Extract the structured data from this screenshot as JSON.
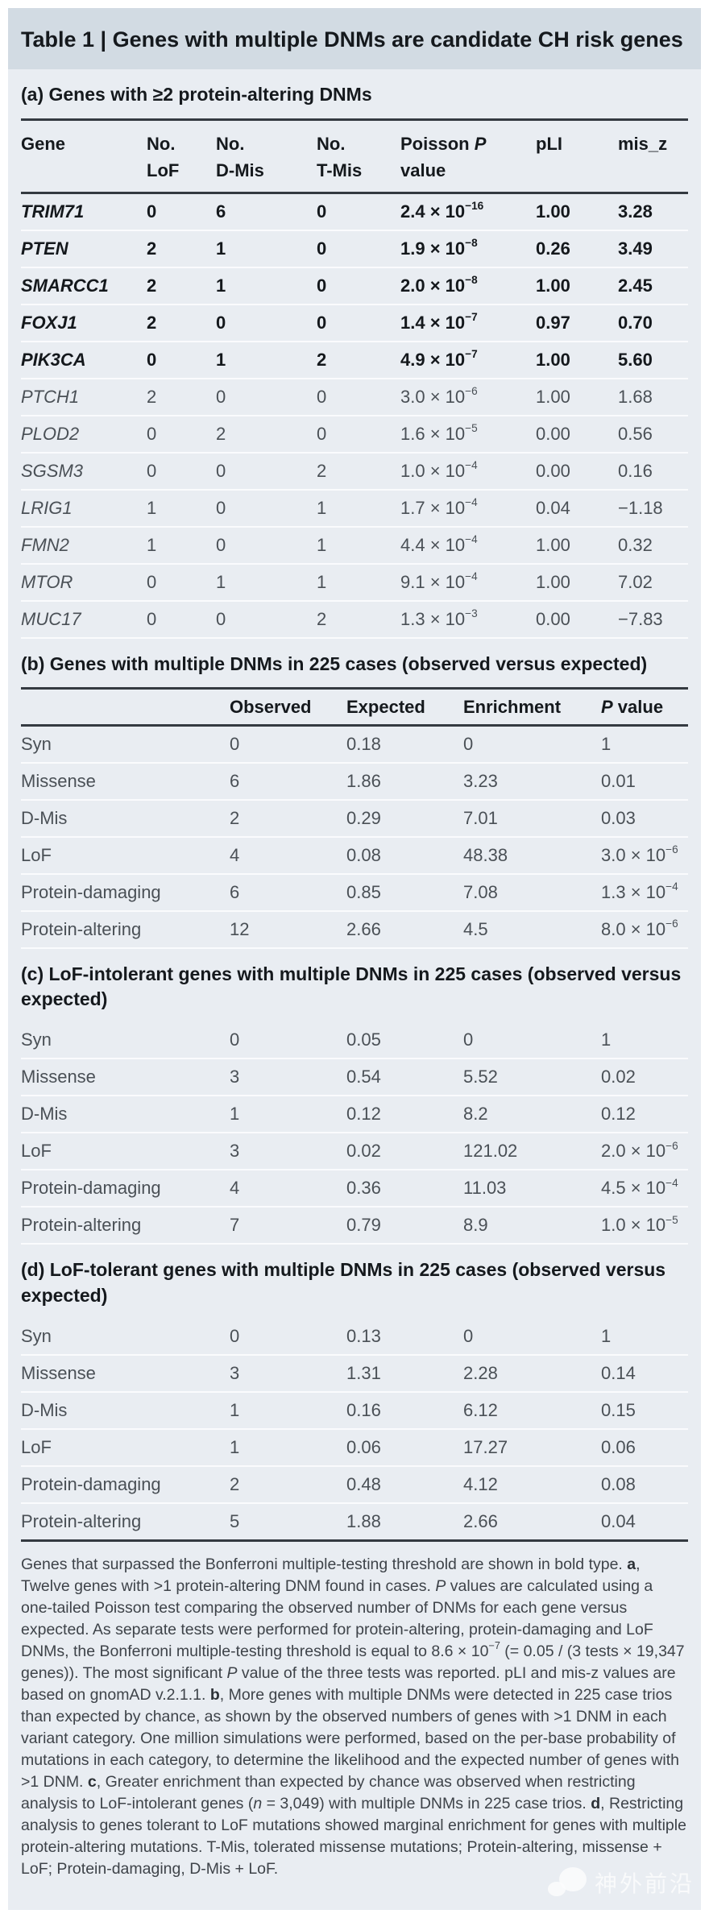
{
  "title": "Table 1 | Genes with multiple DNMs are candidate CH risk genes",
  "colors": {
    "title_band": "#d2dbe3",
    "body_background": "#e9edf2",
    "rule": "#343a41",
    "text_dark": "#14181c",
    "text_regular": "#4a5056"
  },
  "a": {
    "heading": "(a) Genes with ≥2 protein-altering DNMs",
    "columns": {
      "gene": "Gene",
      "no1a": "No.",
      "no1b": "LoF",
      "no2a": "No.",
      "no2b": "D-Mis",
      "no3a": "No.",
      "no3b": "T-Mis",
      "p1a": "Poisson ",
      "p1b": "P",
      "p1c": "value",
      "pli": "pLI",
      "misz": "mis_z"
    },
    "rows": [
      {
        "gene": "TRIM71",
        "lof": "0",
        "dmis": "6",
        "tmis": "0",
        "p": "2.4 × 10",
        "pexp": "−16",
        "pli": "1.00",
        "misz": "3.28"
      },
      {
        "gene": "PTEN",
        "lof": "2",
        "dmis": "1",
        "tmis": "0",
        "p": "1.9 × 10",
        "pexp": "−8",
        "pli": "0.26",
        "misz": "3.49"
      },
      {
        "gene": "SMARCC1",
        "lof": "2",
        "dmis": "1",
        "tmis": "0",
        "p": "2.0 × 10",
        "pexp": "−8",
        "pli": "1.00",
        "misz": "2.45"
      },
      {
        "gene": "FOXJ1",
        "lof": "2",
        "dmis": "0",
        "tmis": "0",
        "p": "1.4 × 10",
        "pexp": "−7",
        "pli": "0.97",
        "misz": "0.70"
      },
      {
        "gene": "PIK3CA",
        "lof": "0",
        "dmis": "1",
        "tmis": "2",
        "p": "4.9 × 10",
        "pexp": "−7",
        "pli": "1.00",
        "misz": "5.60"
      },
      {
        "gene": "PTCH1",
        "lof": "2",
        "dmis": "0",
        "tmis": "0",
        "p": "3.0 × 10",
        "pexp": "−6",
        "pli": "1.00",
        "misz": "1.68"
      },
      {
        "gene": "PLOD2",
        "lof": "0",
        "dmis": "2",
        "tmis": "0",
        "p": "1.6 × 10",
        "pexp": "−5",
        "pli": "0.00",
        "misz": "0.56"
      },
      {
        "gene": "SGSM3",
        "lof": "0",
        "dmis": "0",
        "tmis": "2",
        "p": "1.0 × 10",
        "pexp": "−4",
        "pli": "0.00",
        "misz": "0.16"
      },
      {
        "gene": "LRIG1",
        "lof": "1",
        "dmis": "0",
        "tmis": "1",
        "p": "1.7 × 10",
        "pexp": "−4",
        "pli": "0.04",
        "misz": "−1.18"
      },
      {
        "gene": "FMN2",
        "lof": "1",
        "dmis": "0",
        "tmis": "1",
        "p": "4.4 × 10",
        "pexp": "−4",
        "pli": "1.00",
        "misz": "0.32"
      },
      {
        "gene": "MTOR",
        "lof": "0",
        "dmis": "1",
        "tmis": "1",
        "p": "9.1 × 10",
        "pexp": "−4",
        "pli": "1.00",
        "misz": "7.02"
      },
      {
        "gene": "MUC17",
        "lof": "0",
        "dmis": "0",
        "tmis": "2",
        "p": "1.3 × 10",
        "pexp": "−3",
        "pli": "0.00",
        "misz": "−7.83"
      }
    ]
  },
  "b": {
    "heading": "(b) Genes with multiple DNMs in 225 cases (observed versus expected)",
    "columns": {
      "obs": "Observed",
      "exp": "Expected",
      "enr": "Enrichment",
      "pv_p": "P",
      "pv_rest": " value"
    },
    "rows": [
      {
        "label": "Syn",
        "obs": "0",
        "exp": "0.18",
        "enr": "0",
        "p": "1",
        "pexp": ""
      },
      {
        "label": "Missense",
        "obs": "6",
        "exp": "1.86",
        "enr": "3.23",
        "p": "0.01",
        "pexp": ""
      },
      {
        "label": "D-Mis",
        "obs": "2",
        "exp": "0.29",
        "enr": "7.01",
        "p": "0.03",
        "pexp": ""
      },
      {
        "label": "LoF",
        "obs": "4",
        "exp": "0.08",
        "enr": "48.38",
        "p": "3.0 × 10",
        "pexp": "−6"
      },
      {
        "label": "Protein-damaging",
        "obs": "6",
        "exp": "0.85",
        "enr": "7.08",
        "p": "1.3 × 10",
        "pexp": "−4"
      },
      {
        "label": "Protein-altering",
        "obs": "12",
        "exp": "2.66",
        "enr": "4.5",
        "p": "8.0 × 10",
        "pexp": "−6"
      }
    ]
  },
  "c": {
    "heading": "(c) LoF-intolerant genes with multiple DNMs in 225 cases (observed versus expected)",
    "rows": [
      {
        "label": "Syn",
        "obs": "0",
        "exp": "0.05",
        "enr": "0",
        "p": "1",
        "pexp": ""
      },
      {
        "label": "Missense",
        "obs": "3",
        "exp": "0.54",
        "enr": "5.52",
        "p": "0.02",
        "pexp": ""
      },
      {
        "label": "D-Mis",
        "obs": "1",
        "exp": "0.12",
        "enr": "8.2",
        "p": "0.12",
        "pexp": ""
      },
      {
        "label": "LoF",
        "obs": "3",
        "exp": "0.02",
        "enr": "121.02",
        "p": "2.0 × 10",
        "pexp": "−6"
      },
      {
        "label": "Protein-damaging",
        "obs": "4",
        "exp": "0.36",
        "enr": "11.03",
        "p": "4.5 × 10",
        "pexp": "−4"
      },
      {
        "label": "Protein-altering",
        "obs": "7",
        "exp": "0.79",
        "enr": "8.9",
        "p": "1.0 × 10",
        "pexp": "−5"
      }
    ]
  },
  "d": {
    "heading": "(d) LoF-tolerant genes with multiple DNMs in 225 cases (observed versus expected)",
    "rows": [
      {
        "label": "Syn",
        "obs": "0",
        "exp": "0.13",
        "enr": "0",
        "p": "1",
        "pexp": ""
      },
      {
        "label": "Missense",
        "obs": "3",
        "exp": "1.31",
        "enr": "2.28",
        "p": "0.14",
        "pexp": ""
      },
      {
        "label": "D-Mis",
        "obs": "1",
        "exp": "0.16",
        "enr": "6.12",
        "p": "0.15",
        "pexp": ""
      },
      {
        "label": "LoF",
        "obs": "1",
        "exp": "0.06",
        "enr": "17.27",
        "p": "0.06",
        "pexp": ""
      },
      {
        "label": "Protein-damaging",
        "obs": "2",
        "exp": "0.48",
        "enr": "4.12",
        "p": "0.08",
        "pexp": ""
      },
      {
        "label": "Protein-altering",
        "obs": "5",
        "exp": "1.88",
        "enr": "2.66",
        "p": "0.04",
        "pexp": ""
      }
    ]
  },
  "footnote": {
    "s1": "Genes that surpassed the Bonferroni multiple-testing threshold are shown in bold type. ",
    "s2": "a",
    "s3": ", Twelve genes with >1 protein-altering DNM found in cases. ",
    "s4": "P",
    "s5": " values are calculated using a one-tailed Poisson test comparing the observed number of DNMs for each gene versus expected. As separate tests were performed for protein-altering, protein-damaging and LoF DNMs, the Bonferroni multiple-testing threshold is equal to 8.6 × 10",
    "s6": "−7",
    "s7": " (= 0.05 / (3 tests × 19,347 genes)). The most significant ",
    "s8": "P",
    "s9": " value of the three tests was reported. pLI and mis-z values are based on gnomAD v.2.1.1. ",
    "s10": "b",
    "s11": ", More genes with multiple DNMs were detected in 225 case trios than expected by chance, as shown by the observed numbers of genes with >1 DNM in each variant category. One million simulations were performed, based on the per-base probability of mutations in each category, to determine the likelihood and the expected number of genes with >1 DNM. ",
    "s12": "c",
    "s13": ", Greater enrichment than expected by chance was observed when restricting analysis to LoF-intolerant genes (",
    "s14": "n",
    "s15": " = 3,049) with multiple DNMs in 225 case trios. ",
    "s16": "d",
    "s17": ", Restricting analysis to genes tolerant to LoF mutations showed marginal enrichment for genes with multiple protein-altering mutations. T-Mis, tolerated missense mutations; Protein-altering, missense + LoF; Protein-damaging, D-Mis + LoF."
  },
  "watermark": {
    "text": "神外前沿"
  }
}
